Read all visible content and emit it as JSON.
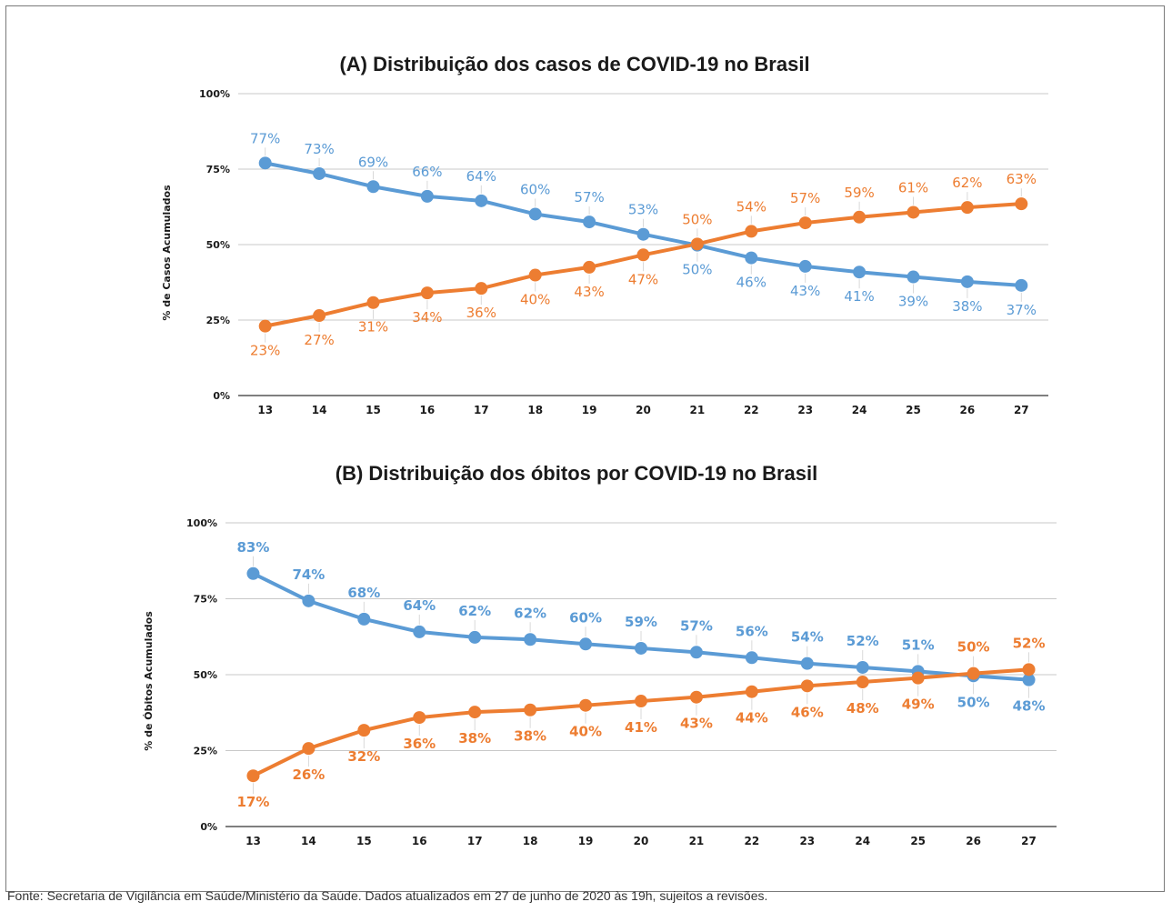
{
  "colors": {
    "blue": "#5b9bd5",
    "orange": "#ed7d31",
    "grid": "#c8c8c8",
    "axis": "#555555",
    "leader": "#d9d9d9"
  },
  "chart_data": [
    {
      "type": "line",
      "title": "(A) Distribuição dos casos de COVID-19 no Brasil",
      "xlabel": "",
      "ylabel": "% de Casos Acumulados",
      "ylim": [
        0,
        100
      ],
      "yticks": [
        "0%",
        "25%",
        "50%",
        "75%",
        "100%"
      ],
      "categories": [
        "13",
        "14",
        "15",
        "16",
        "17",
        "18",
        "19",
        "20",
        "21",
        "22",
        "23",
        "24",
        "25",
        "26",
        "27"
      ],
      "grid": true,
      "legend": "none",
      "series": [
        {
          "color": "#5b9bd5",
          "values": [
            77,
            73.5,
            69.2,
            66,
            64.5,
            60.1,
            57.5,
            53.4,
            49.8,
            45.6,
            42.8,
            40.9,
            39.3,
            37.7,
            36.5
          ],
          "labels": [
            "77%",
            "73%",
            "69%",
            "66%",
            "64%",
            "60%",
            "57%",
            "53%",
            "50%",
            "46%",
            "43%",
            "41%",
            "39%",
            "38%",
            "37%"
          ]
        },
        {
          "color": "#ed7d31",
          "values": [
            23,
            26.5,
            30.8,
            34,
            35.5,
            39.9,
            42.5,
            46.6,
            50.2,
            54.4,
            57.2,
            59.1,
            60.7,
            62.3,
            63.5
          ],
          "labels": [
            "23%",
            "27%",
            "31%",
            "34%",
            "36%",
            "40%",
            "43%",
            "47%",
            "50%",
            "54%",
            "57%",
            "59%",
            "61%",
            "62%",
            "63%"
          ]
        }
      ]
    },
    {
      "type": "line",
      "title": "(B) Distribuição dos óbitos por COVID-19 no Brasil",
      "xlabel": "",
      "ylabel": "% de Óbitos Acumulados",
      "ylim": [
        0,
        100
      ],
      "yticks": [
        "0%",
        "25%",
        "50%",
        "75%",
        "100%"
      ],
      "categories": [
        "13",
        "14",
        "15",
        "16",
        "17",
        "18",
        "19",
        "20",
        "21",
        "22",
        "23",
        "24",
        "25",
        "26",
        "27"
      ],
      "grid": true,
      "legend": "none",
      "series": [
        {
          "color": "#5b9bd5",
          "values": [
            83.3,
            74.3,
            68.3,
            64.1,
            62.3,
            61.6,
            60.1,
            58.7,
            57.4,
            55.6,
            53.7,
            52.4,
            51.1,
            49.6,
            48.3
          ],
          "labels": [
            "83%",
            "74%",
            "68%",
            "64%",
            "62%",
            "62%",
            "60%",
            "59%",
            "57%",
            "56%",
            "54%",
            "52%",
            "51%",
            "50%",
            "48%"
          ]
        },
        {
          "color": "#ed7d31",
          "values": [
            16.7,
            25.7,
            31.7,
            35.9,
            37.7,
            38.4,
            39.9,
            41.3,
            42.6,
            44.4,
            46.3,
            47.6,
            48.9,
            50.4,
            51.7
          ],
          "labels": [
            "17%",
            "26%",
            "32%",
            "36%",
            "38%",
            "38%",
            "40%",
            "41%",
            "43%",
            "44%",
            "46%",
            "48%",
            "49%",
            "50%",
            "52%"
          ]
        }
      ]
    }
  ],
  "source": "Fonte: Secretaria de Vigilância em Saúde/Ministério da Saúde. Dados atualizados em 27 de junho de 2020 às 19h, sujeitos a revisões."
}
